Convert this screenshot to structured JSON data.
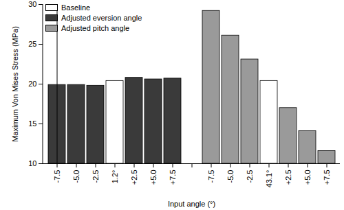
{
  "chart_data": {
    "type": "bar",
    "x_label": "Input angle (°)",
    "y_label": "Maximum Von Mises Stress (MPa)",
    "categories": [
      "-7.5",
      "-5.0",
      "-2.5",
      "1.2°",
      "+2.5",
      "+5.0",
      "+7.5",
      null,
      "-7.5",
      "-5.0",
      "-2.5",
      "43.1°",
      "+2.5",
      "+5.0",
      "+7.5"
    ],
    "series": [
      {
        "name": "Baseline",
        "color": "#ffffff",
        "values": [
          null,
          null,
          null,
          20.4,
          null,
          null,
          null,
          null,
          null,
          null,
          null,
          20.4,
          null,
          null,
          null
        ]
      },
      {
        "name": "Adjusted eversion angle",
        "color": "#3a3a3a",
        "values": [
          19.9,
          19.9,
          19.8,
          null,
          20.8,
          20.6,
          20.7,
          null,
          null,
          null,
          null,
          null,
          null,
          null,
          null
        ]
      },
      {
        "name": "Adjusted pitch angle",
        "color": "#9a9a9a",
        "values": [
          null,
          null,
          null,
          null,
          null,
          null,
          null,
          null,
          29.2,
          26.1,
          23.1,
          null,
          17.0,
          14.1,
          11.6
        ]
      }
    ],
    "ylim": [
      10,
      30
    ],
    "yticks": [
      10,
      15,
      20,
      25,
      30
    ],
    "legend": "upper left",
    "grid": false
  }
}
